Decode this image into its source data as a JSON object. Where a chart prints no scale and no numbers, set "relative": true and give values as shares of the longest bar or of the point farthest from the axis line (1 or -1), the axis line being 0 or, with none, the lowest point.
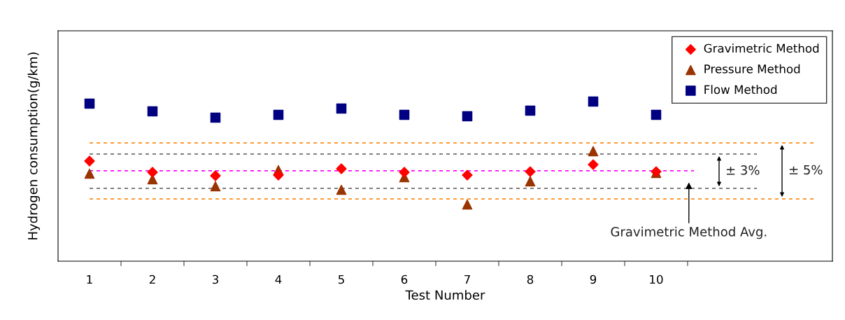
{
  "chart_data": {
    "type": "scatter",
    "relative": true,
    "xlabel": "Test Number",
    "ylabel": "Hydrogen consumption(g/km)",
    "categories": [
      "1",
      "2",
      "3",
      "4",
      "5",
      "6",
      "7",
      "8",
      "9",
      "10"
    ],
    "series": [
      {
        "name": "Gravimetric Method",
        "color": "#ff0000",
        "marker": "diamond",
        "values": [
          0.627,
          0.557,
          0.535,
          0.539,
          0.579,
          0.557,
          0.539,
          0.561,
          0.605,
          0.561
        ]
      },
      {
        "name": "Pressure Method",
        "color": "#993300",
        "marker": "triangle",
        "values": [
          0.548,
          0.513,
          0.469,
          0.57,
          0.447,
          0.526,
          0.355,
          0.5,
          0.689,
          0.553
        ]
      },
      {
        "name": "Flow Method",
        "color": "#000080",
        "marker": "square",
        "values": [
          0.987,
          0.939,
          0.899,
          0.917,
          0.956,
          0.917,
          0.908,
          0.943,
          1,
          0.917
        ]
      }
    ],
    "ref_lines": [
      {
        "axis": "y",
        "value": 0.566,
        "label": null,
        "color": "#ff00ff",
        "line_style": "dashed"
      },
      {
        "axis": "y",
        "value": 0.671,
        "label": null,
        "color": "#555555",
        "line_style": "dashed"
      },
      {
        "axis": "y",
        "value": 0.456,
        "label": null,
        "color": "#555555",
        "line_style": "dashed"
      },
      {
        "axis": "y",
        "value": 0.741,
        "label": null,
        "color": "#ff8c1a",
        "line_style": "dashed"
      },
      {
        "axis": "y",
        "value": 0.39,
        "label": null,
        "color": "#ff8c1a",
        "line_style": "dashed"
      }
    ],
    "annotations": [
      "Gravimetric Method Avg.",
      "± 3%",
      "± 5%"
    ],
    "legend": "top right",
    "grid": false
  }
}
